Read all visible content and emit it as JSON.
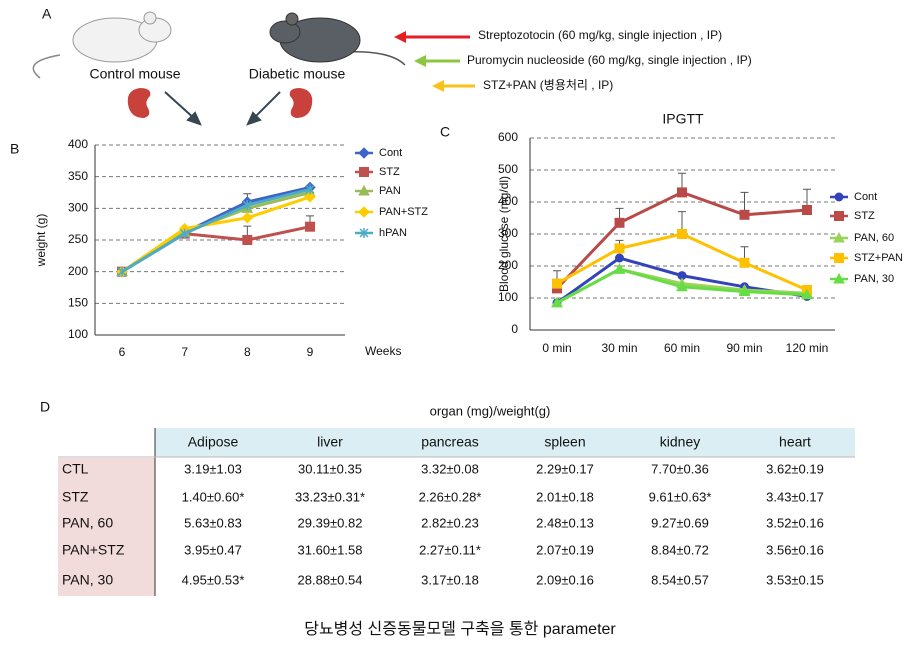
{
  "panel_a": {
    "label": "A",
    "control": "Control mouse",
    "diabetic": "Diabetic mouse",
    "treatments": [
      "Streptozotocin (60 mg/kg, single injection , IP)",
      "Puromycin nucleoside (60 mg/kg, single injection , IP)",
      "STZ+PAN (병용처리 , IP)"
    ]
  },
  "chart_data": [
    {
      "type": "line",
      "panel": "B",
      "x_label": "Weeks",
      "y_label": "weight (g)",
      "categories": [
        "6",
        "7",
        "8",
        "9"
      ],
      "ylim": [
        100,
        400
      ],
      "yticks": [
        100,
        150,
        200,
        250,
        300,
        350,
        400
      ],
      "grid": true,
      "series": [
        {
          "name": "Cont",
          "color": "#3f64c8",
          "marker": "diamond",
          "values": [
            200,
            262,
            310,
            333
          ],
          "errors": [
            null,
            null,
            13,
            null
          ]
        },
        {
          "name": "STZ",
          "color": "#c0504d",
          "marker": "square",
          "values": [
            200,
            260,
            250,
            271
          ],
          "errors": [
            null,
            null,
            22,
            17
          ]
        },
        {
          "name": "PAN",
          "color": "#9bbb59",
          "marker": "triangle",
          "values": [
            200,
            262,
            300,
            325
          ],
          "errors": [
            null,
            null,
            null,
            null
          ]
        },
        {
          "name": "PAN+STZ",
          "color": "#ffcc00",
          "marker": "diamond",
          "values": [
            200,
            268,
            285,
            318
          ],
          "errors": [
            null,
            null,
            null,
            null
          ]
        },
        {
          "name": "hPAN",
          "color": "#4bacc6",
          "marker": "star",
          "values": [
            200,
            260,
            305,
            330
          ],
          "errors": [
            null,
            null,
            null,
            null
          ]
        }
      ]
    },
    {
      "type": "line",
      "panel": "C",
      "title": "IPGTT",
      "y_label": "Blood glucose (mg/dl)",
      "categories": [
        "0 min",
        "30 min",
        "60 min",
        "90 min",
        "120 min"
      ],
      "ylim": [
        0,
        600
      ],
      "yticks": [
        0,
        100,
        200,
        300,
        400,
        500,
        600
      ],
      "grid": true,
      "series": [
        {
          "name": "Cont",
          "color": "#3344bb",
          "marker": "circle",
          "values": [
            85,
            225,
            170,
            135,
            105
          ],
          "errors": [
            null,
            null,
            null,
            null,
            null
          ]
        },
        {
          "name": "STZ",
          "color": "#b94a48",
          "marker": "square",
          "values": [
            130,
            335,
            430,
            360,
            375
          ],
          "errors": [
            55,
            45,
            60,
            70,
            65
          ]
        },
        {
          "name": "PAN, 60",
          "color": "#9bd35a",
          "marker": "triangle",
          "values": [
            85,
            190,
            145,
            125,
            115
          ],
          "errors": [
            null,
            null,
            null,
            null,
            null
          ]
        },
        {
          "name": "STZ+PAN",
          "color": "#ffc000",
          "marker": "square",
          "values": [
            145,
            255,
            300,
            210,
            125
          ],
          "errors": [
            null,
            25,
            70,
            50,
            null
          ]
        },
        {
          "name": "PAN, 30",
          "color": "#66dd44",
          "marker": "triangle",
          "values": [
            85,
            190,
            135,
            120,
            110
          ],
          "errors": [
            null,
            null,
            null,
            null,
            null
          ]
        }
      ]
    }
  ],
  "table": {
    "label": "D",
    "group_header": "organ (mg)/weight(g)",
    "columns": [
      "Adipose",
      "liver",
      "pancreas",
      "spleen",
      "kidney",
      "heart"
    ],
    "rows": [
      [
        "CTL",
        "3.19±1.03",
        "30.11±0.35",
        "3.32±0.08",
        "2.29±0.17",
        "7.70±0.36",
        "3.62±0.19"
      ],
      [
        "STZ",
        "1.40±0.60*",
        "33.23±0.31*",
        "2.26±0.28*",
        "2.01±0.18",
        "9.61±0.63*",
        "3.43±0.17"
      ],
      [
        "PAN, 60",
        "5.63±0.83",
        "29.39±0.82",
        "2.82±0.23",
        "2.48±0.13",
        "9.27±0.69",
        "3.52±0.16"
      ],
      [
        "PAN+STZ",
        "3.95±0.47",
        "31.60±1.58",
        "2.27±0.11*",
        "2.07±0.19",
        "8.84±0.72",
        "3.56±0.16"
      ],
      [
        "PAN, 30",
        "4.95±0.53*",
        "28.88±0.54",
        "3.17±0.18",
        "2.09±0.16",
        "8.54±0.57",
        "3.53±0.15"
      ]
    ]
  },
  "caption": "당뇨병성 신증동물모델 구축을 통한  parameter"
}
